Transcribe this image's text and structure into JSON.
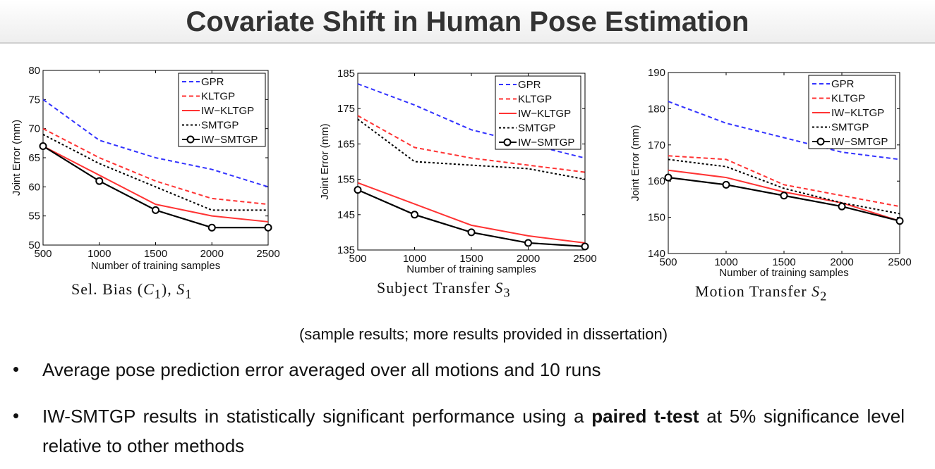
{
  "slide": {
    "title": "Covariate Shift in Human Pose Estimation",
    "note": "(sample results; more results provided in dissertation)",
    "bullets": [
      {
        "text": "Average pose prediction error averaged over all motions and 10 runs"
      },
      {
        "pre": "IW-SMTGP results in statistically significant performance using a ",
        "bold": "paired t-test",
        "post": " at 5% significance level relative to other methods"
      }
    ]
  },
  "captions": [
    {
      "pre": "Sel. Bias (",
      "c": "C",
      "sub1": "1",
      "mid": "), ",
      "s": "S",
      "sub2": "1"
    },
    {
      "pre": "Subject Transfer ",
      "s": "S",
      "sub": "3"
    },
    {
      "pre": "Motion Transfer ",
      "s": "S",
      "sub": "2"
    }
  ],
  "chart_data": [
    {
      "type": "line",
      "xlabel": "Number of training samples",
      "ylabel": "Joint Error (mm)",
      "xlim": [
        500,
        2500
      ],
      "ylim": [
        50,
        80
      ],
      "xticks": [
        500,
        1000,
        1500,
        2000,
        2500
      ],
      "yticks": [
        50,
        55,
        60,
        65,
        70,
        75,
        80
      ],
      "x": [
        500,
        1000,
        1500,
        2000,
        2500
      ],
      "legend_position": "top-right",
      "series": [
        {
          "name": "GPR",
          "values": [
            75,
            68,
            65,
            63,
            60
          ],
          "color": "#3333ff",
          "dash": "dashed"
        },
        {
          "name": "KLTGP",
          "values": [
            70,
            65,
            61,
            58,
            57
          ],
          "color": "#ff3333",
          "dash": "dashed"
        },
        {
          "name": "IW−KLTGP",
          "values": [
            67,
            62,
            57,
            55,
            54
          ],
          "color": "#ff3333",
          "dash": "solid"
        },
        {
          "name": "SMTGP",
          "values": [
            69,
            64,
            60,
            56,
            56
          ],
          "color": "#000000",
          "dash": "dotted"
        },
        {
          "name": "IW−SMTGP",
          "values": [
            67,
            61,
            56,
            53,
            53
          ],
          "color": "#000000",
          "dash": "solid",
          "marker": "circle"
        }
      ]
    },
    {
      "type": "line",
      "xlabel": "Number of training samples",
      "ylabel": "Joint Error (mm)",
      "xlim": [
        500,
        2500
      ],
      "ylim": [
        135,
        185
      ],
      "xticks": [
        500,
        1000,
        1500,
        2000,
        2500
      ],
      "yticks": [
        135,
        145,
        155,
        165,
        175,
        185
      ],
      "x": [
        500,
        1000,
        1500,
        2000,
        2500
      ],
      "legend_position": "top-right",
      "series": [
        {
          "name": "GPR",
          "values": [
            182,
            176,
            169,
            165,
            161
          ],
          "color": "#3333ff",
          "dash": "dashed"
        },
        {
          "name": "KLTGP",
          "values": [
            173,
            164,
            161,
            159,
            157
          ],
          "color": "#ff3333",
          "dash": "dashed"
        },
        {
          "name": "IW−KLTGP",
          "values": [
            154,
            148,
            142,
            139,
            137
          ],
          "color": "#ff3333",
          "dash": "solid"
        },
        {
          "name": "SMTGP",
          "values": [
            172,
            160,
            159,
            158,
            155
          ],
          "color": "#000000",
          "dash": "dotted"
        },
        {
          "name": "IW−SMTGP",
          "values": [
            152,
            145,
            140,
            137,
            136
          ],
          "color": "#000000",
          "dash": "solid",
          "marker": "circle"
        }
      ]
    },
    {
      "type": "line",
      "xlabel": "Number of training samples",
      "ylabel": "Joint Error (mm)",
      "xlim": [
        500,
        2500
      ],
      "ylim": [
        140,
        190
      ],
      "xticks": [
        500,
        1000,
        1500,
        2000,
        2500
      ],
      "yticks": [
        140,
        150,
        160,
        170,
        180,
        190
      ],
      "x": [
        500,
        1000,
        1500,
        2000,
        2500
      ],
      "legend_position": "top-right",
      "series": [
        {
          "name": "GPR",
          "values": [
            182,
            176,
            172,
            168,
            166
          ],
          "color": "#3333ff",
          "dash": "dashed"
        },
        {
          "name": "KLTGP",
          "values": [
            167,
            166,
            159,
            156,
            153
          ],
          "color": "#ff3333",
          "dash": "dashed"
        },
        {
          "name": "IW−KLTGP",
          "values": [
            163,
            161,
            157,
            154,
            149
          ],
          "color": "#ff3333",
          "dash": "solid"
        },
        {
          "name": "SMTGP",
          "values": [
            166,
            164,
            158,
            154,
            151
          ],
          "color": "#000000",
          "dash": "dotted"
        },
        {
          "name": "IW−SMTGP",
          "values": [
            161,
            159,
            156,
            153,
            149
          ],
          "color": "#000000",
          "dash": "solid",
          "marker": "circle"
        }
      ]
    }
  ]
}
